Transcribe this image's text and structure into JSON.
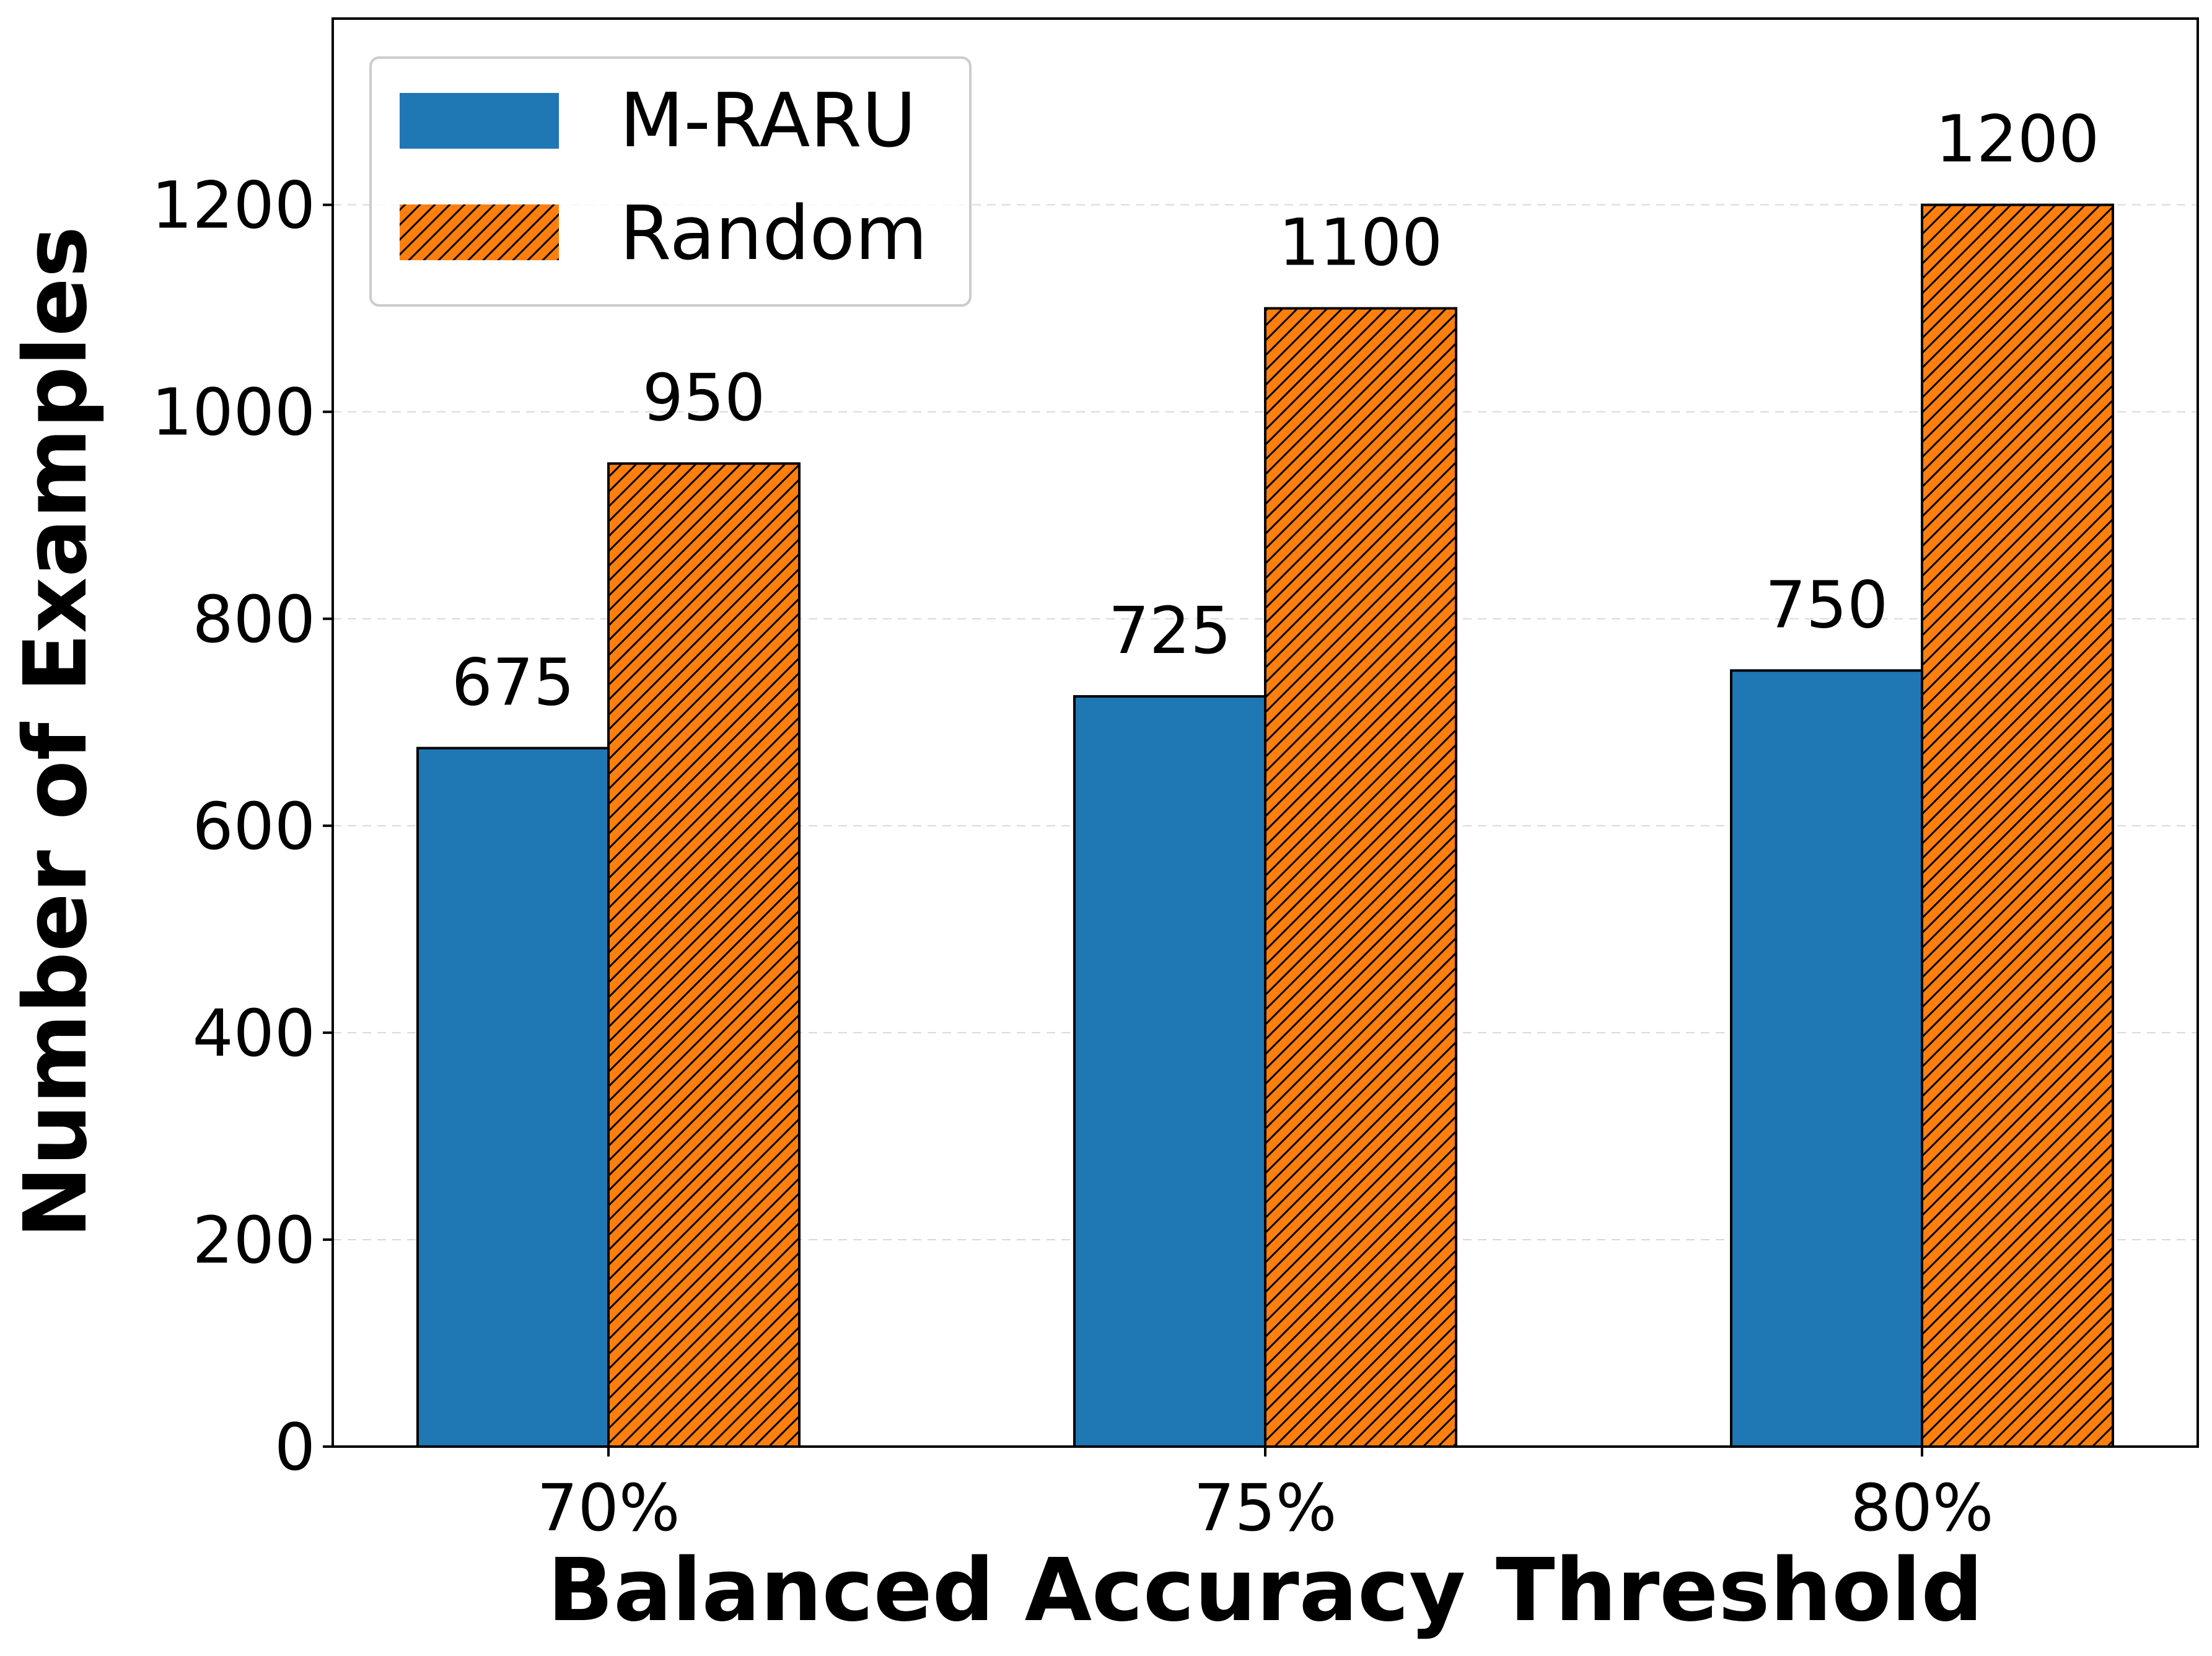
{
  "colors": {
    "m_raru": "#1f77b4",
    "random": "#ff7f0e",
    "edge": "#000000",
    "grid": "#d9d9d9"
  },
  "chart_data": {
    "type": "bar",
    "categories": [
      "70%",
      "75%",
      "80%"
    ],
    "series": [
      {
        "name": "M-RARU",
        "values": [
          675,
          725,
          750
        ],
        "color": "#1f77b4",
        "hatch": "none"
      },
      {
        "name": "Random",
        "values": [
          950,
          1100,
          1200
        ],
        "color": "#ff7f0e",
        "hatch": "diagonal"
      }
    ],
    "title": "",
    "xlabel": "Balanced Accuracy Threshold",
    "ylabel": "Number of Examples",
    "ylim": [
      0,
      1380
    ],
    "yticks": [
      0,
      200,
      400,
      600,
      800,
      1000,
      1200
    ],
    "grid": "horizontal-dashed",
    "legend_position": "top-left",
    "data_labels": true
  }
}
